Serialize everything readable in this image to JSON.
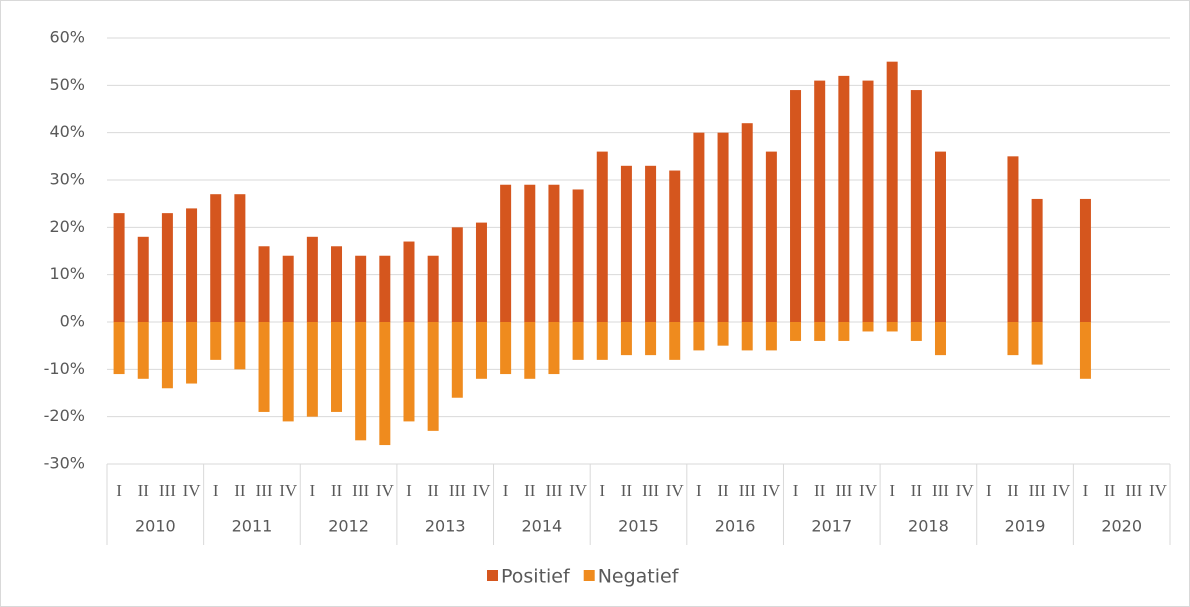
{
  "chart_data": {
    "type": "bar",
    "categories": [
      "I",
      "II",
      "III",
      "IV",
      "I",
      "II",
      "III",
      "IV",
      "I",
      "II",
      "III",
      "IV",
      "I",
      "II",
      "III",
      "IV",
      "I",
      "II",
      "III",
      "IV",
      "I",
      "II",
      "III",
      "IV",
      "I",
      "II",
      "III",
      "IV",
      "I",
      "II",
      "III",
      "IV",
      "I",
      "II",
      "III",
      "IV",
      "I",
      "II",
      "III",
      "IV",
      "I",
      "II",
      "III",
      "IV"
    ],
    "groups": [
      "2010",
      "2011",
      "2012",
      "2013",
      "2014",
      "2015",
      "2016",
      "2017",
      "2018",
      "2019",
      "2020"
    ],
    "series": [
      {
        "name": "Positief",
        "color": "#d5561e",
        "values": [
          23,
          18,
          23,
          24,
          27,
          27,
          16,
          14,
          18,
          16,
          14,
          14,
          17,
          14,
          20,
          21,
          29,
          29,
          29,
          28,
          36,
          33,
          33,
          32,
          40,
          40,
          42,
          36,
          49,
          51,
          52,
          51,
          55,
          49,
          36,
          null,
          null,
          35,
          26,
          null,
          26,
          null,
          null,
          null
        ]
      },
      {
        "name": "Negatief",
        "color": "#ef8b1e",
        "values": [
          -11,
          -12,
          -14,
          -13,
          -8,
          -10,
          -19,
          -21,
          -20,
          -19,
          -25,
          -26,
          -21,
          -23,
          -16,
          -12,
          -11,
          -12,
          -11,
          -8,
          -8,
          -7,
          -7,
          -8,
          -6,
          -5,
          -6,
          -6,
          -4,
          -4,
          -4,
          -2,
          -2,
          -4,
          -7,
          null,
          null,
          -7,
          -9,
          null,
          -12,
          null,
          null,
          null
        ]
      }
    ],
    "ylim": [
      -30,
      60
    ],
    "yticks": [
      {
        "value": -30,
        "label": "-30%"
      },
      {
        "value": -20,
        "label": "-20%"
      },
      {
        "value": -10,
        "label": "-10%"
      },
      {
        "value": 0,
        "label": "0%"
      },
      {
        "value": 10,
        "label": "10%"
      },
      {
        "value": 20,
        "label": "20%"
      },
      {
        "value": 30,
        "label": "30%"
      },
      {
        "value": 40,
        "label": "40%"
      },
      {
        "value": 50,
        "label": "50%"
      },
      {
        "value": 60,
        "label": "60%"
      }
    ],
    "grid": true,
    "legend": "bottom"
  }
}
